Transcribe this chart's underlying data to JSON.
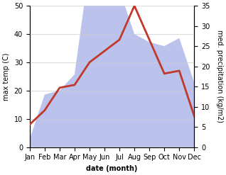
{
  "months": [
    "Jan",
    "Feb",
    "Mar",
    "Apr",
    "May",
    "Jun",
    "Jul",
    "Aug",
    "Sep",
    "Oct",
    "Nov",
    "Dec"
  ],
  "temperature": [
    8,
    13,
    21,
    22,
    30,
    34,
    38,
    50,
    38,
    26,
    27,
    11
  ],
  "precipitation": [
    2,
    13,
    14,
    18,
    45,
    40,
    39,
    28,
    26,
    25,
    27,
    16
  ],
  "temp_color": "#c0392b",
  "precip_color_fill": "#b0b8e8",
  "temp_ylim": [
    0,
    50
  ],
  "precip_ylim": [
    0,
    35
  ],
  "temp_yticks": [
    0,
    10,
    20,
    30,
    40,
    50
  ],
  "precip_yticks": [
    0,
    5,
    10,
    15,
    20,
    25,
    30,
    35
  ],
  "xlabel": "date (month)",
  "ylabel_left": "max temp (C)",
  "ylabel_right": "med. precipitation (kg/m2)",
  "background_color": "#ffffff",
  "grid_color": "#cccccc",
  "line_width": 2.0,
  "ylabel_fontsize": 7,
  "tick_fontsize": 7,
  "xlabel_fontsize": 7
}
